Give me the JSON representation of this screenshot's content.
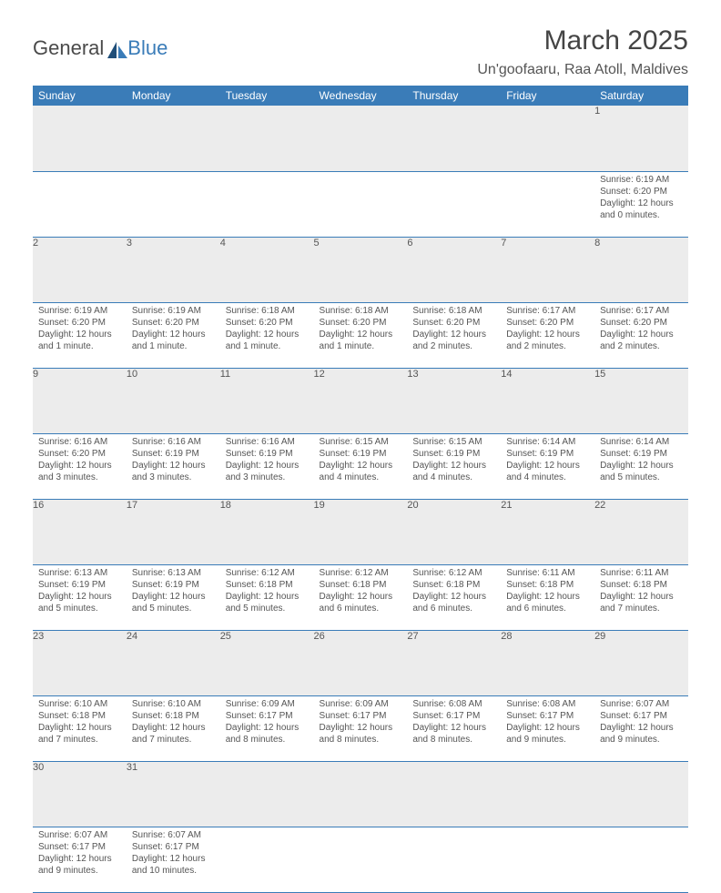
{
  "logo": {
    "text1": "General",
    "text2": "Blue"
  },
  "title": "March 2025",
  "location": "Un'goofaaru, Raa Atoll, Maldives",
  "headerColor": "#3a7cb8",
  "days": [
    "Sunday",
    "Monday",
    "Tuesday",
    "Wednesday",
    "Thursday",
    "Friday",
    "Saturday"
  ],
  "weeks": [
    [
      null,
      null,
      null,
      null,
      null,
      null,
      {
        "n": "1",
        "sr": "6:19 AM",
        "ss": "6:20 PM",
        "dl": "12 hours and 0 minutes."
      }
    ],
    [
      {
        "n": "2",
        "sr": "6:19 AM",
        "ss": "6:20 PM",
        "dl": "12 hours and 1 minute."
      },
      {
        "n": "3",
        "sr": "6:19 AM",
        "ss": "6:20 PM",
        "dl": "12 hours and 1 minute."
      },
      {
        "n": "4",
        "sr": "6:18 AM",
        "ss": "6:20 PM",
        "dl": "12 hours and 1 minute."
      },
      {
        "n": "5",
        "sr": "6:18 AM",
        "ss": "6:20 PM",
        "dl": "12 hours and 1 minute."
      },
      {
        "n": "6",
        "sr": "6:18 AM",
        "ss": "6:20 PM",
        "dl": "12 hours and 2 minutes."
      },
      {
        "n": "7",
        "sr": "6:17 AM",
        "ss": "6:20 PM",
        "dl": "12 hours and 2 minutes."
      },
      {
        "n": "8",
        "sr": "6:17 AM",
        "ss": "6:20 PM",
        "dl": "12 hours and 2 minutes."
      }
    ],
    [
      {
        "n": "9",
        "sr": "6:16 AM",
        "ss": "6:20 PM",
        "dl": "12 hours and 3 minutes."
      },
      {
        "n": "10",
        "sr": "6:16 AM",
        "ss": "6:19 PM",
        "dl": "12 hours and 3 minutes."
      },
      {
        "n": "11",
        "sr": "6:16 AM",
        "ss": "6:19 PM",
        "dl": "12 hours and 3 minutes."
      },
      {
        "n": "12",
        "sr": "6:15 AM",
        "ss": "6:19 PM",
        "dl": "12 hours and 4 minutes."
      },
      {
        "n": "13",
        "sr": "6:15 AM",
        "ss": "6:19 PM",
        "dl": "12 hours and 4 minutes."
      },
      {
        "n": "14",
        "sr": "6:14 AM",
        "ss": "6:19 PM",
        "dl": "12 hours and 4 minutes."
      },
      {
        "n": "15",
        "sr": "6:14 AM",
        "ss": "6:19 PM",
        "dl": "12 hours and 5 minutes."
      }
    ],
    [
      {
        "n": "16",
        "sr": "6:13 AM",
        "ss": "6:19 PM",
        "dl": "12 hours and 5 minutes."
      },
      {
        "n": "17",
        "sr": "6:13 AM",
        "ss": "6:19 PM",
        "dl": "12 hours and 5 minutes."
      },
      {
        "n": "18",
        "sr": "6:12 AM",
        "ss": "6:18 PM",
        "dl": "12 hours and 5 minutes."
      },
      {
        "n": "19",
        "sr": "6:12 AM",
        "ss": "6:18 PM",
        "dl": "12 hours and 6 minutes."
      },
      {
        "n": "20",
        "sr": "6:12 AM",
        "ss": "6:18 PM",
        "dl": "12 hours and 6 minutes."
      },
      {
        "n": "21",
        "sr": "6:11 AM",
        "ss": "6:18 PM",
        "dl": "12 hours and 6 minutes."
      },
      {
        "n": "22",
        "sr": "6:11 AM",
        "ss": "6:18 PM",
        "dl": "12 hours and 7 minutes."
      }
    ],
    [
      {
        "n": "23",
        "sr": "6:10 AM",
        "ss": "6:18 PM",
        "dl": "12 hours and 7 minutes."
      },
      {
        "n": "24",
        "sr": "6:10 AM",
        "ss": "6:18 PM",
        "dl": "12 hours and 7 minutes."
      },
      {
        "n": "25",
        "sr": "6:09 AM",
        "ss": "6:17 PM",
        "dl": "12 hours and 8 minutes."
      },
      {
        "n": "26",
        "sr": "6:09 AM",
        "ss": "6:17 PM",
        "dl": "12 hours and 8 minutes."
      },
      {
        "n": "27",
        "sr": "6:08 AM",
        "ss": "6:17 PM",
        "dl": "12 hours and 8 minutes."
      },
      {
        "n": "28",
        "sr": "6:08 AM",
        "ss": "6:17 PM",
        "dl": "12 hours and 9 minutes."
      },
      {
        "n": "29",
        "sr": "6:07 AM",
        "ss": "6:17 PM",
        "dl": "12 hours and 9 minutes."
      }
    ],
    [
      {
        "n": "30",
        "sr": "6:07 AM",
        "ss": "6:17 PM",
        "dl": "12 hours and 9 minutes."
      },
      {
        "n": "31",
        "sr": "6:07 AM",
        "ss": "6:17 PM",
        "dl": "12 hours and 10 minutes."
      },
      null,
      null,
      null,
      null,
      null
    ]
  ],
  "labels": {
    "sunrise": "Sunrise: ",
    "sunset": "Sunset: ",
    "daylight": "Daylight: "
  }
}
